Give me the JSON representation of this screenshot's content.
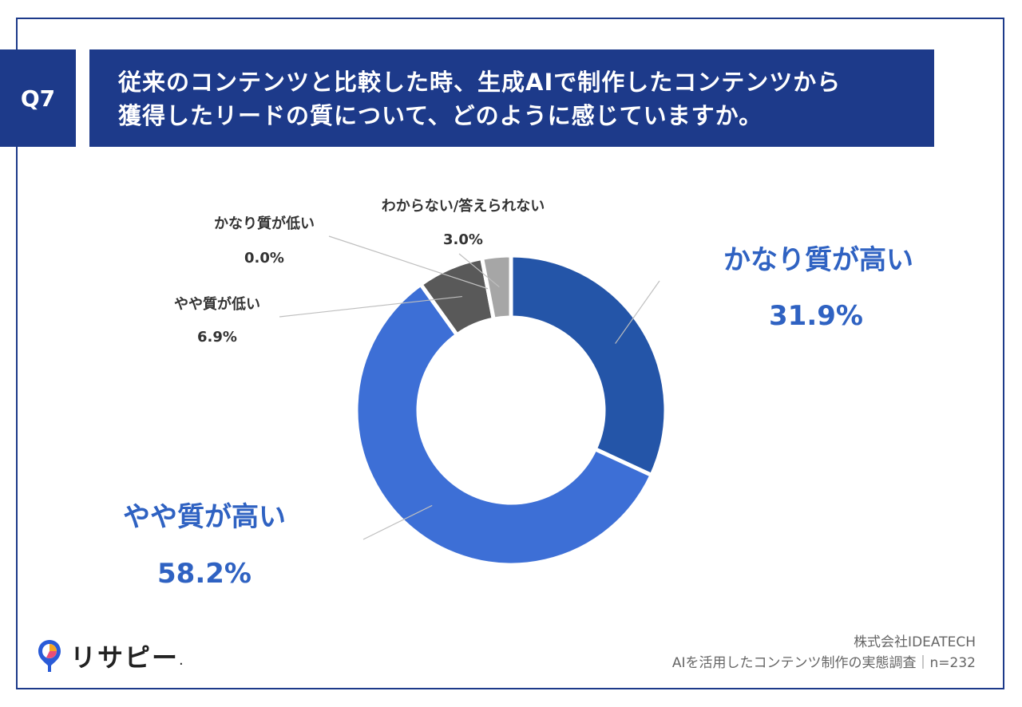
{
  "question": {
    "badge": "Q7",
    "line1": "従来のコンテンツと比較した時、生成AIで制作したコンテンツから",
    "line2": "獲得したリードの質について、どのように感じていますか。"
  },
  "chart_data": {
    "type": "pie",
    "donut": true,
    "slices": [
      {
        "label": "かなり質が高い",
        "value": 31.9,
        "value_label": "31.9%",
        "color": "#2455a8"
      },
      {
        "label": "やや質が高い",
        "value": 58.2,
        "value_label": "58.2%",
        "color": "#3d6fd6"
      },
      {
        "label": "やや質が低い",
        "value": 6.9,
        "value_label": "6.9%",
        "color": "#595959"
      },
      {
        "label": "かなり質が低い",
        "value": 0.0,
        "value_label": "0.0%",
        "color": "#404040"
      },
      {
        "label": "わからない/答えられない",
        "value": 3.0,
        "value_label": "3.0%",
        "color": "#a6a6a6"
      }
    ]
  },
  "footer": {
    "company": "株式会社IDEATECH",
    "survey": "AIを活用したコンテンツ制作の実態調査｜n=232",
    "logo_text": "リサピー",
    "logo_dot": "."
  },
  "colors": {
    "navy": "#1d3a8a",
    "highlight_label": "#2f62c2",
    "small_label": "#333333"
  }
}
